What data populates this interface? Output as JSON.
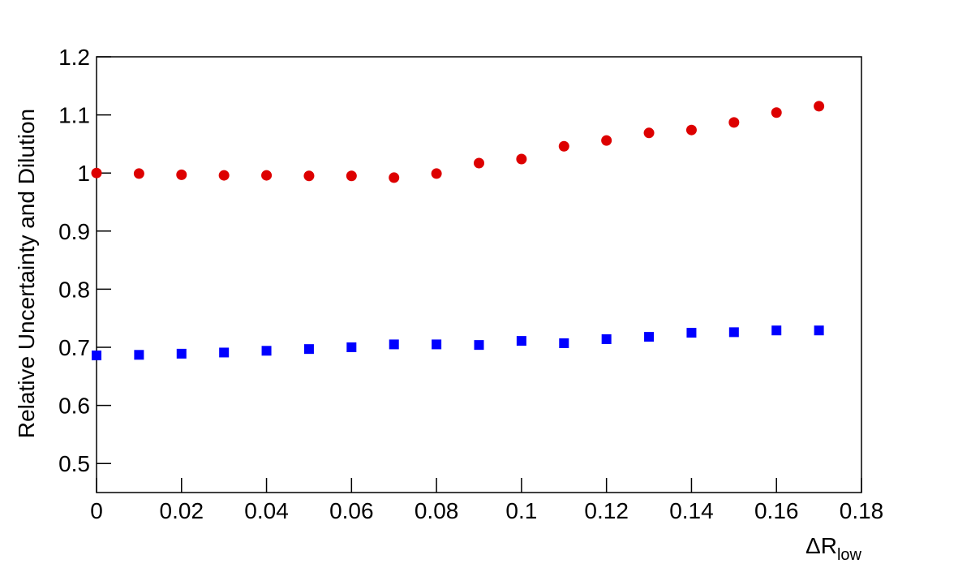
{
  "chart_data": {
    "type": "scatter",
    "ylabel": "Relative Uncertainty and Dilution",
    "xlabel": {
      "main": "ΔR",
      "sub": "low"
    },
    "x": [
      0,
      0.01,
      0.02,
      0.03,
      0.04,
      0.05,
      0.06,
      0.07,
      0.08,
      0.09,
      0.1,
      0.11,
      0.12,
      0.13,
      0.14,
      0.15,
      0.16,
      0.17
    ],
    "series": [
      {
        "color": "#dd0000",
        "marker": "circle",
        "values": [
          1.0,
          0.999,
          0.997,
          0.996,
          0.996,
          0.995,
          0.995,
          0.992,
          0.999,
          1.017,
          1.024,
          1.046,
          1.056,
          1.069,
          1.074,
          1.087,
          1.104,
          1.115
        ]
      },
      {
        "color": "#0000ff",
        "marker": "square",
        "values": [
          0.686,
          0.687,
          0.689,
          0.691,
          0.694,
          0.697,
          0.7,
          0.705,
          0.705,
          0.704,
          0.711,
          0.707,
          0.714,
          0.718,
          0.725,
          0.726,
          0.729,
          0.729
        ]
      }
    ],
    "xlim": [
      0,
      0.18
    ],
    "xticks": [
      0,
      0.02,
      0.04,
      0.06,
      0.08,
      0.1,
      0.12,
      0.14,
      0.16,
      0.18
    ],
    "ylim": [
      0.45,
      1.2
    ],
    "yticks": [
      0.5,
      0.6,
      0.7,
      0.8,
      0.9,
      1,
      1.1,
      1.2
    ]
  }
}
